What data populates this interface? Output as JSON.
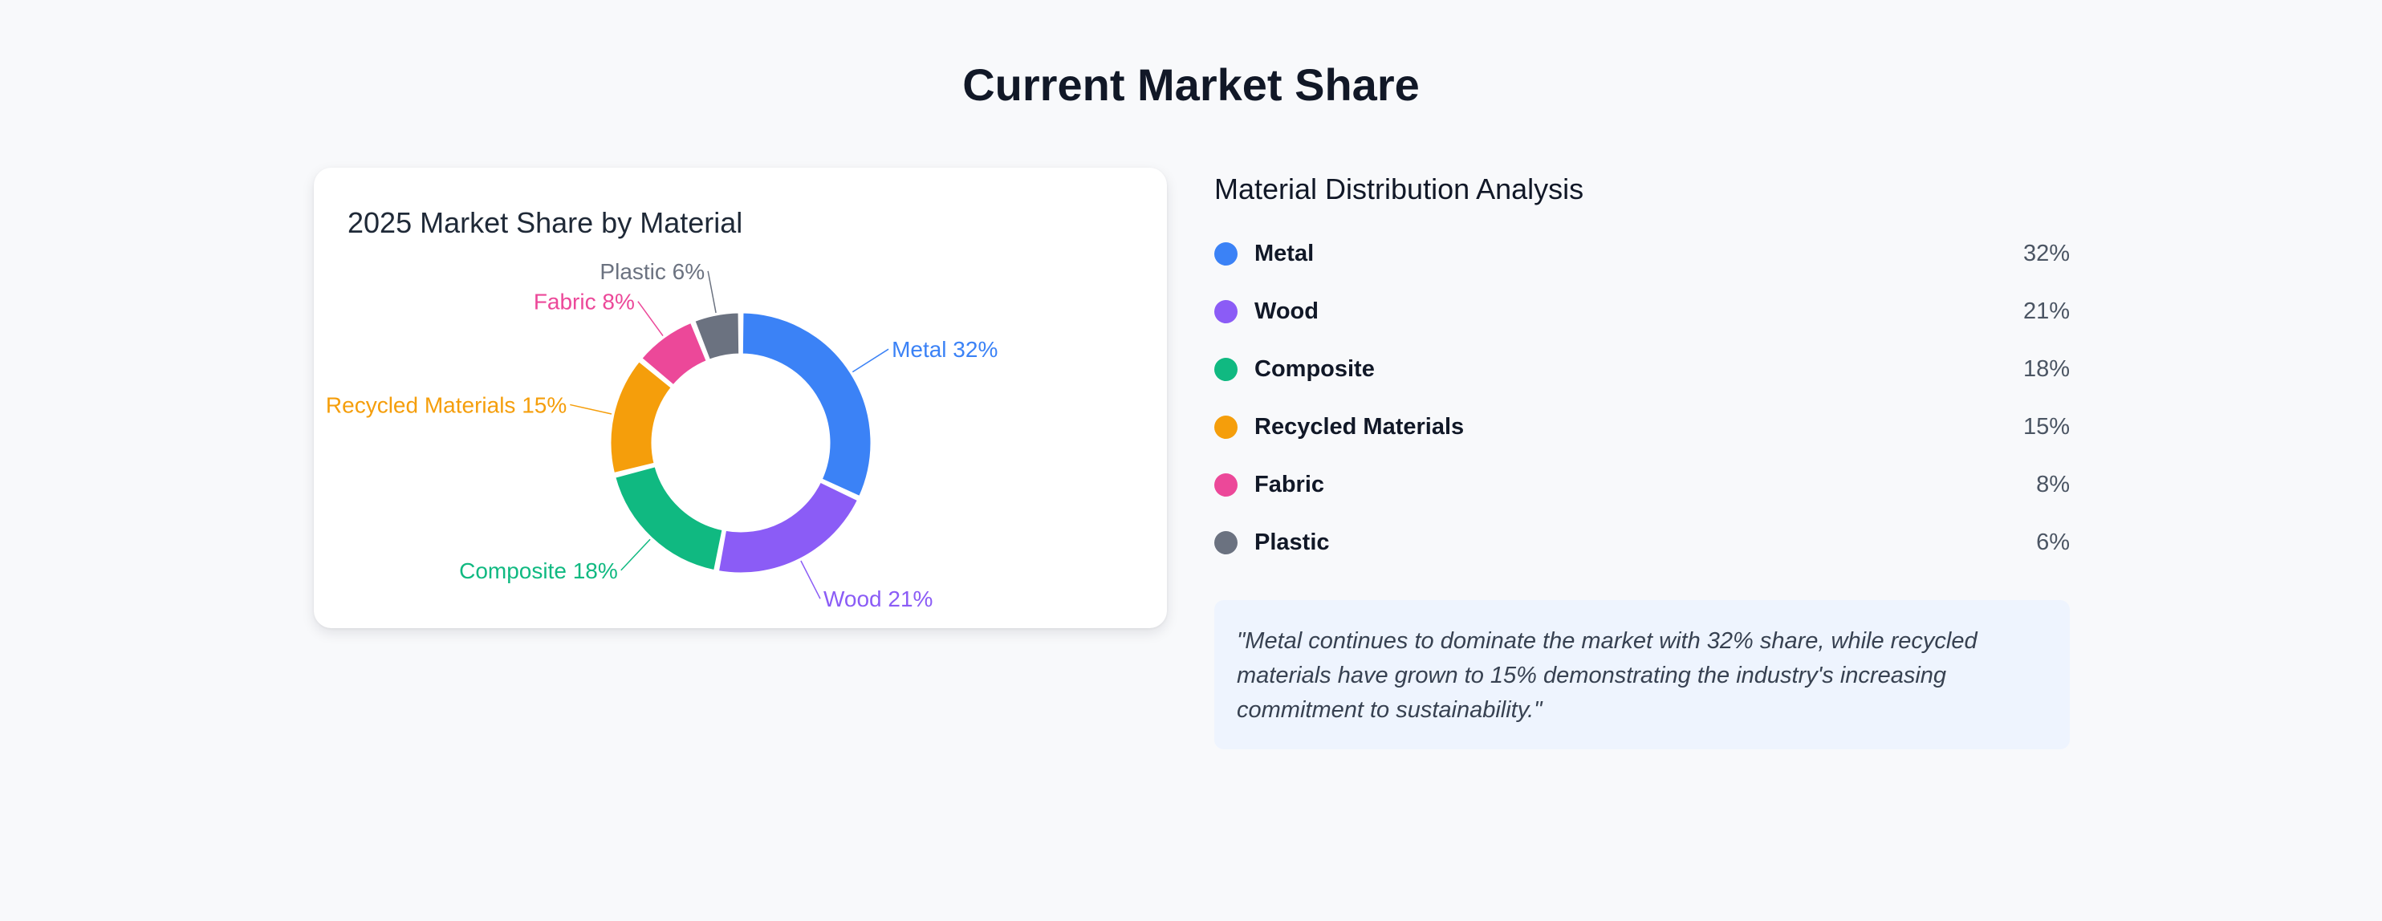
{
  "page": {
    "title": "Current Market Share"
  },
  "chart_data": {
    "type": "pie",
    "title": "2025 Market Share by Material",
    "categories": [
      "Metal",
      "Wood",
      "Composite",
      "Recycled Materials",
      "Fabric",
      "Plastic"
    ],
    "values": [
      32,
      21,
      18,
      15,
      8,
      6
    ],
    "unit": "%",
    "colors": [
      "#3b82f6",
      "#8b5cf6",
      "#10b981",
      "#f59e0b",
      "#ec4899",
      "#6b7280"
    ],
    "labels": [
      "Metal 32%",
      "Wood 21%",
      "Composite 18%",
      "Recycled Materials 15%",
      "Fabric 8%",
      "Plastic 6%"
    ],
    "donut": true,
    "legend": "none"
  },
  "analysis": {
    "title": "Material Distribution Analysis",
    "items": [
      {
        "name": "Metal",
        "value": "32%",
        "color": "#3b82f6"
      },
      {
        "name": "Wood",
        "value": "21%",
        "color": "#8b5cf6"
      },
      {
        "name": "Composite",
        "value": "18%",
        "color": "#10b981"
      },
      {
        "name": "Recycled Materials",
        "value": "15%",
        "color": "#f59e0b"
      },
      {
        "name": "Fabric",
        "value": "8%",
        "color": "#ec4899"
      },
      {
        "name": "Plastic",
        "value": "6%",
        "color": "#6b7280"
      }
    ],
    "quote": "\"Metal continues to dominate the market with 32% share, while recycled materials have grown to 15% demonstrating the industry's increasing commitment to sustainability.\""
  }
}
